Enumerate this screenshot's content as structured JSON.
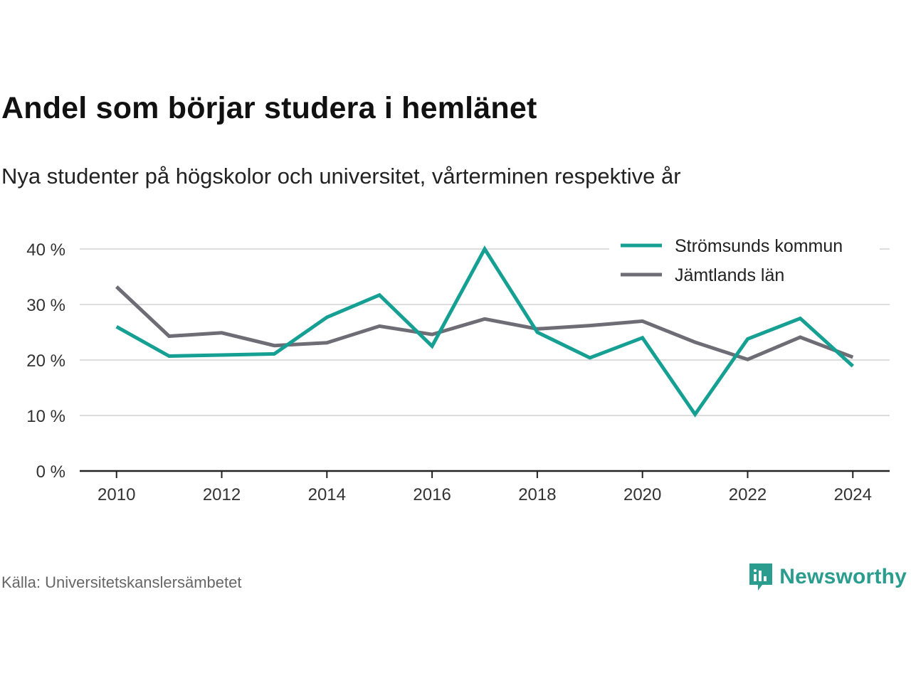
{
  "header": {
    "title": "Andel som börjar studera i hemlänet",
    "subtitle": "Nya studenter på högskolor och universitet, vårterminen respektive år"
  },
  "footer": {
    "source": "Källa: Universitetskanslersämbetet",
    "brand": "Newsworthy",
    "brand_icon": "chat-bar-chart-icon"
  },
  "colors": {
    "series_1": "#16a093",
    "series_2": "#6e6d75",
    "grid": "#dddddd",
    "axis": "#222222",
    "brand": "#2a9d8f"
  },
  "chart_data": {
    "type": "line",
    "title": "Andel som börjar studera i hemlänet",
    "subtitle": "Nya studenter på högskolor och universitet, vårterminen respektive år",
    "xlabel": "",
    "ylabel": "",
    "x": [
      2010,
      2011,
      2012,
      2013,
      2014,
      2015,
      2016,
      2017,
      2018,
      2019,
      2020,
      2021,
      2022,
      2023,
      2024
    ],
    "x_ticks": [
      2010,
      2012,
      2014,
      2016,
      2018,
      2020,
      2022,
      2024
    ],
    "x_tick_labels": [
      "2010",
      "2012",
      "2014",
      "2016",
      "2018",
      "2020",
      "2022",
      "2024"
    ],
    "xlim": [
      2009.3,
      2024.7
    ],
    "y_ticks": [
      0,
      10,
      20,
      30,
      40
    ],
    "y_tick_labels": [
      "0 %",
      "10 %",
      "20 %",
      "30 %",
      "40 %"
    ],
    "ylim": [
      0,
      40
    ],
    "grid": true,
    "legend_position": "top-right",
    "series": [
      {
        "name": "Strömsunds kommun",
        "color": "#16a093",
        "values": [
          26.0,
          20.7,
          20.9,
          21.1,
          27.7,
          31.7,
          22.5,
          40.0,
          25.0,
          20.4,
          24.0,
          10.2,
          23.8,
          27.5,
          18.9
        ]
      },
      {
        "name": "Jämtlands län",
        "color": "#6e6d75",
        "values": [
          33.2,
          24.3,
          24.9,
          22.6,
          23.1,
          26.1,
          24.6,
          27.4,
          25.6,
          26.2,
          27.0,
          23.2,
          20.1,
          24.1,
          20.5
        ]
      }
    ]
  }
}
